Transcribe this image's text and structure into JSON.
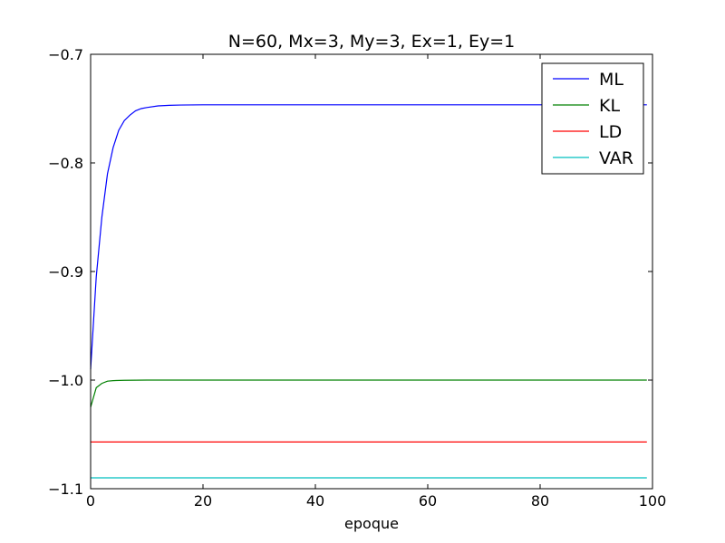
{
  "chart_data": {
    "type": "line",
    "title": "N=60, Mx=3, My=3, Ex=1, Ey=1",
    "xlabel": "epoque",
    "ylabel": "",
    "xlim": [
      0,
      100
    ],
    "ylim": [
      -1.1,
      -0.7
    ],
    "xticks": [
      0,
      20,
      40,
      60,
      80,
      100
    ],
    "xtick_labels": [
      "0",
      "20",
      "40",
      "60",
      "80",
      "100"
    ],
    "yticks": [
      -0.7,
      -0.8,
      -0.9,
      -1.0,
      -1.1
    ],
    "ytick_labels": [
      "−0.7",
      "−0.8",
      "−0.9",
      "−1.0",
      "−1.1"
    ],
    "grid": false,
    "legend_position": "top-right",
    "series": [
      {
        "name": "ML",
        "color": "#0000ff",
        "x": [
          0,
          1,
          2,
          3,
          4,
          5,
          6,
          7,
          8,
          9,
          10,
          12,
          14,
          16,
          20,
          30,
          50,
          99
        ],
        "values": [
          -0.99,
          -0.905,
          -0.85,
          -0.81,
          -0.786,
          -0.77,
          -0.761,
          -0.756,
          -0.752,
          -0.75,
          -0.749,
          -0.7475,
          -0.747,
          -0.7467,
          -0.7465,
          -0.7465,
          -0.7465,
          -0.7465
        ]
      },
      {
        "name": "KL",
        "color": "#008000",
        "x": [
          0,
          1,
          2,
          3,
          4,
          6,
          10,
          99
        ],
        "values": [
          -1.025,
          -1.007,
          -1.003,
          -1.001,
          -1.0005,
          -1.0002,
          -1.0,
          -1.0
        ]
      },
      {
        "name": "LD",
        "color": "#ff0000",
        "x": [
          0,
          99
        ],
        "values": [
          -1.057,
          -1.057
        ]
      },
      {
        "name": "VAR",
        "color": "#00bfbf",
        "x": [
          0,
          99
        ],
        "values": [
          -1.09,
          -1.09
        ]
      }
    ]
  }
}
